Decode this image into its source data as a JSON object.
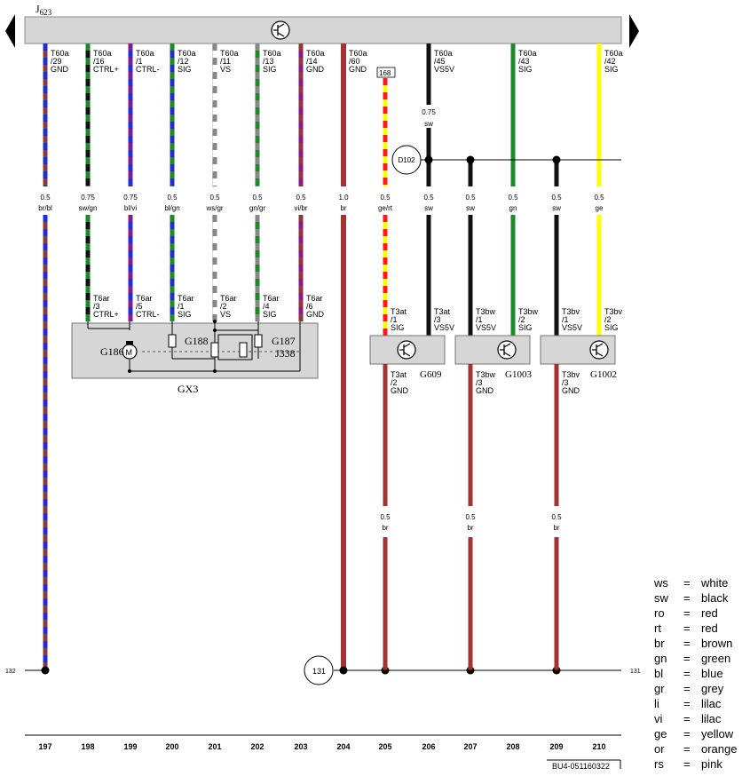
{
  "ecu": {
    "name": "J",
    "sub": "623"
  },
  "wires": [
    {
      "col": "197",
      "conn": [
        "T60a",
        "/29",
        "GND"
      ],
      "gauge": "0.5",
      "code": "br/bl",
      "colors": [
        "#8b3a3a",
        "#1f2fd0"
      ],
      "conn2": null
    },
    {
      "col": "198",
      "conn": [
        "T60a",
        "/16",
        "CTRL+"
      ],
      "gauge": "0.75",
      "code": "sw/gn",
      "colors": [
        "#111111",
        "#1d8a2a"
      ],
      "conn2": [
        "T6ar",
        "/3",
        "CTRL+"
      ]
    },
    {
      "col": "199",
      "conn": [
        "T60a",
        "/1",
        "CTRL-"
      ],
      "gauge": "0.75",
      "code": "bl/vi",
      "colors": [
        "#1f2fd0",
        "#8a1a8a"
      ],
      "conn2": [
        "T6ar",
        "/5",
        "CTRL-"
      ]
    },
    {
      "col": "200",
      "conn": [
        "T60a",
        "/12",
        "SIG"
      ],
      "gauge": "0.5",
      "code": "bl/gn",
      "colors": [
        "#1f2fd0",
        "#1d8a2a"
      ],
      "conn2": [
        "T6ar",
        "/1",
        "SIG"
      ]
    },
    {
      "col": "201",
      "conn": [
        "T60a",
        "/11",
        "VS"
      ],
      "gauge": "0.5",
      "code": "ws/gr",
      "colors": [
        "#ffffff",
        "#888888"
      ],
      "conn2": [
        "T6ar",
        "/2",
        "VS"
      ]
    },
    {
      "col": "202",
      "conn": [
        "T60a",
        "/13",
        "SIG"
      ],
      "gauge": "0.5",
      "code": "gn/gr",
      "colors": [
        "#1d8a2a",
        "#888888"
      ],
      "conn2": [
        "T6ar",
        "/4",
        "SIG"
      ]
    },
    {
      "col": "203",
      "conn": [
        "T60a",
        "/14",
        "GND"
      ],
      "gauge": "0.5",
      "code": "vi/br",
      "colors": [
        "#8a1a8a",
        "#8b3a3a"
      ],
      "conn2": [
        "T6ar",
        "/6",
        "GND"
      ]
    },
    {
      "col": "204",
      "conn": [
        "T60a",
        "/60",
        "GND"
      ],
      "gauge": "1.0",
      "code": "br",
      "colors": [
        "#a33232"
      ],
      "conn2": null
    },
    {
      "col": "205",
      "conn": [
        "168",
        "",
        ""
      ],
      "gauge": "0.5",
      "code": "ge/rt",
      "colors": [
        "#ffff00",
        "#ff1a1a"
      ],
      "conn2": [
        "T3at",
        "/1",
        "SIG"
      ]
    },
    {
      "col": "206",
      "conn": [
        "T60a",
        "/45",
        "VS5V"
      ],
      "gauge": "0.5",
      "code": "sw",
      "colors": [
        "#111111"
      ],
      "conn2": [
        "T3at",
        "/3",
        "VS5V"
      ]
    },
    {
      "col": "207",
      "conn": null,
      "gauge": "0.5",
      "code": "sw",
      "colors": [
        "#111111"
      ],
      "conn2": [
        "T3bw",
        "/1",
        "VS5V"
      ]
    },
    {
      "col": "208",
      "conn": [
        "T60a",
        "/43",
        "SIG"
      ],
      "gauge": "0.5",
      "code": "gn",
      "colors": [
        "#1d8a2a"
      ],
      "conn2": [
        "T3bw",
        "/2",
        "SIG"
      ]
    },
    {
      "col": "209",
      "conn": null,
      "gauge": "0.5",
      "code": "sw",
      "colors": [
        "#111111"
      ],
      "conn2": [
        "T3bv",
        "/1",
        "VS5V"
      ]
    },
    {
      "col": "210",
      "conn": [
        "T60a",
        "/42",
        "SIG"
      ],
      "gauge": "0.5",
      "code": "ge",
      "colors": [
        "#ffff00"
      ],
      "conn2": [
        "T3bv",
        "/2",
        "SIG"
      ]
    }
  ],
  "upper_gauge_206": {
    "gauge": "0.75",
    "code": "sw"
  },
  "splice": "D102",
  "gx3": {
    "label": "GX3",
    "g186": "G186",
    "g188": "G188",
    "g187": "G187",
    "j338": "J338"
  },
  "sensors": [
    {
      "name": "G609",
      "pin_top": [
        "T3at",
        "/1",
        "SIG"
      ],
      "pin_bot": [
        "T3at",
        "/2",
        "GND"
      ],
      "gauge": "0.5",
      "code": "br"
    },
    {
      "name": "G1003",
      "pin_top": [
        "T3bw",
        "/1",
        "VS5V"
      ],
      "pin_bot": [
        "T3bw",
        "/3",
        "GND"
      ],
      "gauge": "0.5",
      "code": "br"
    },
    {
      "name": "G1002",
      "pin_top": [
        "T3bv",
        "/1",
        "VS5V"
      ],
      "pin_bot": [
        "T3bv",
        "/3",
        "GND"
      ],
      "gauge": "0.5",
      "code": "br"
    }
  ],
  "ground_ref": {
    "left": "132",
    "circle": "131",
    "right": "131"
  },
  "footer_cols": [
    "197",
    "198",
    "199",
    "200",
    "201",
    "202",
    "203",
    "204",
    "205",
    "206",
    "207",
    "208",
    "209",
    "210"
  ],
  "doc_code": "BU4-051160322",
  "legend": [
    {
      "abbr": "ws",
      "eq": "=",
      "name": "white"
    },
    {
      "abbr": "sw",
      "eq": "=",
      "name": "black"
    },
    {
      "abbr": "ro",
      "eq": "=",
      "name": "red"
    },
    {
      "abbr": "rt",
      "eq": "=",
      "name": "red"
    },
    {
      "abbr": "br",
      "eq": "=",
      "name": "brown"
    },
    {
      "abbr": "gn",
      "eq": "=",
      "name": "green"
    },
    {
      "abbr": "bl",
      "eq": "=",
      "name": "blue"
    },
    {
      "abbr": "gr",
      "eq": "=",
      "name": "grey"
    },
    {
      "abbr": "li",
      "eq": "=",
      "name": "lilac"
    },
    {
      "abbr": "vi",
      "eq": "=",
      "name": "lilac"
    },
    {
      "abbr": "ge",
      "eq": "=",
      "name": "yellow"
    },
    {
      "abbr": "or",
      "eq": "=",
      "name": "orange"
    },
    {
      "abbr": "rs",
      "eq": "=",
      "name": "pink"
    }
  ]
}
